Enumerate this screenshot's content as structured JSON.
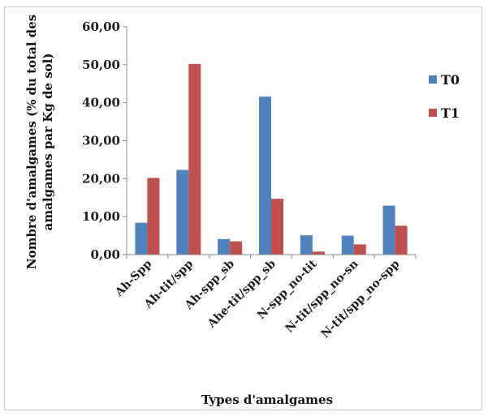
{
  "chart_data": {
    "type": "bar",
    "title": "",
    "xlabel": "Types d'amalgames",
    "ylabel_lines": [
      "Nombre d'amalgames (% du total des",
      "amalgames par Kg de sol)"
    ],
    "categories": [
      "Ah-Spp",
      "Ah-tit/spp",
      "Ah-spp_sb",
      "Ahe-tit/spp_sb",
      "N-spp_no-tit",
      "N-tit/spp_no-sn",
      "N-tit/spp_no-spp"
    ],
    "series": [
      {
        "name": "T0",
        "color": "#4f81bd",
        "values": [
          8.4,
          22.3,
          4.1,
          41.6,
          5.1,
          5.0,
          12.9
        ]
      },
      {
        "name": "T1",
        "color": "#c0504d",
        "values": [
          20.2,
          50.2,
          3.5,
          14.7,
          0.8,
          2.7,
          7.6
        ]
      }
    ],
    "ylim": [
      0,
      60
    ],
    "yticks": [
      "0,00",
      "10,00",
      "20,00",
      "30,00",
      "40,00",
      "50,00",
      "60,00"
    ],
    "grid": false,
    "legend_position": "right"
  }
}
